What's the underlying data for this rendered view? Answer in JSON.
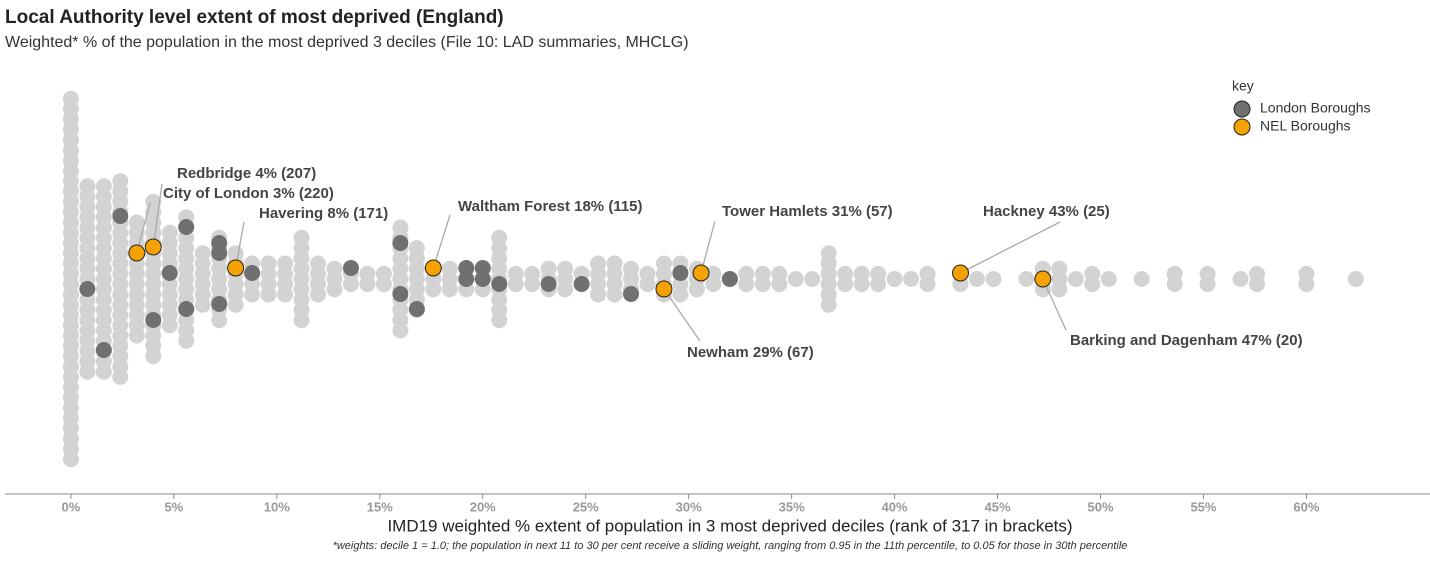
{
  "chart_data": {
    "type": "beeswarm",
    "title": "Local Authority level extent of most deprived (England)",
    "subtitle": "Weighted* % of the population in the most deprived 3 deciles (File 10: LAD summaries, MHCLG)",
    "x_label": "IMD19 weighted % extent of population in 3 most deprived deciles (rank of 317 in brackets)",
    "footnote": "*weights: decile 1 = 1.0; the population in next 11 to 30 per cent receive a sliding weight, ranging from 0.95 in the 11th percentile, to 0.05 for those in 30th percentile",
    "legend_title": "key",
    "legend_position": "top-right",
    "xlim": [
      -3.2,
      66
    ],
    "xticks": [
      {
        "value": 0,
        "label": "0%"
      },
      {
        "value": 5,
        "label": "5%"
      },
      {
        "value": 10,
        "label": "10%"
      },
      {
        "value": 15,
        "label": "15%"
      },
      {
        "value": 20,
        "label": "20%"
      },
      {
        "value": 25,
        "label": "25%"
      },
      {
        "value": 30,
        "label": "30%"
      },
      {
        "value": 35,
        "label": "35%"
      },
      {
        "value": 40,
        "label": "40%"
      },
      {
        "value": 45,
        "label": "45%"
      },
      {
        "value": 50,
        "label": "50%"
      },
      {
        "value": 55,
        "label": "55%"
      },
      {
        "value": 60,
        "label": "60%"
      }
    ],
    "background": {
      "color": "#d3d3d3",
      "x": [
        0,
        0.8,
        1.6,
        2.4,
        3.2,
        4.0,
        4.8,
        5.6,
        6.4,
        7.2,
        8.0,
        8.8,
        9.6,
        10.4,
        11.2,
        12.0,
        12.8,
        13.6,
        14.4,
        15.2,
        16.0,
        16.8,
        17.6,
        18.4,
        19.2,
        20.0,
        20.8,
        21.6,
        22.4,
        23.2,
        24.0,
        24.8,
        25.6,
        26.4,
        27.2,
        28.0,
        28.8,
        29.6,
        30.4,
        31.2,
        32.0,
        32.8,
        33.6,
        34.4,
        35.2,
        36.0,
        36.8,
        37.6,
        38.4,
        39.2,
        40.0,
        40.8,
        41.6,
        43.2,
        44.0,
        44.8,
        46.4,
        47.2,
        48.0,
        48.8,
        49.6,
        50.4,
        52.0,
        53.6,
        55.2,
        56.8,
        57.6,
        60.0,
        62.4
      ],
      "counts": [
        36,
        19,
        19,
        20,
        12,
        16,
        10,
        13,
        6,
        9,
        6,
        4,
        4,
        4,
        9,
        4,
        3,
        2,
        2,
        2,
        11,
        7,
        3,
        3,
        3,
        3,
        9,
        2,
        2,
        3,
        3,
        2,
        4,
        4,
        3,
        2,
        4,
        4,
        3,
        2,
        1,
        2,
        2,
        2,
        1,
        1,
        6,
        2,
        2,
        2,
        1,
        1,
        2,
        2,
        1,
        1,
        1,
        3,
        3,
        1,
        2,
        1,
        1,
        2,
        2,
        1,
        2,
        2,
        1
      ]
    },
    "series": [
      {
        "name": "London Boroughs",
        "color": "#707070",
        "values": [
          0.8,
          1.6,
          2.4,
          4.0,
          4.8,
          5.6,
          5.6,
          7.2,
          7.2,
          7.2,
          8.8,
          13.6,
          16.0,
          16.0,
          16.8,
          19.2,
          19.2,
          20.0,
          20.0,
          20.8,
          23.2,
          24.8,
          27.2,
          29.6,
          32.0
        ]
      },
      {
        "name": "NEL Boroughs",
        "color": "#f5a100",
        "values": [
          3.2,
          4.0,
          8.0,
          17.6,
          28.8,
          30.6,
          43.2,
          47.2
        ],
        "labels": [
          "City of London 3% (220)",
          "Redbridge 4% (207)",
          "Havering 8% (171)",
          "Waltham Forest 18% (115)",
          "Newham 29% (67)",
          "Tower Hamlets 31% (57)",
          "Hackney 43% (25)",
          "Barking and Dagenham 47% (20)"
        ]
      }
    ]
  }
}
